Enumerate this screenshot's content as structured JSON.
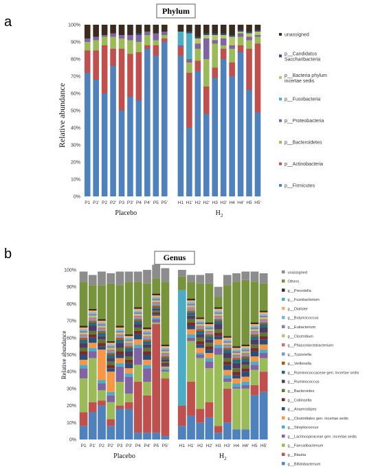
{
  "panel_labels": [
    "a",
    "b"
  ],
  "chart_data": [
    {
      "type": "bar",
      "stacked": true,
      "title": "Phylum",
      "ylabel": "Relative abundance",
      "yticks": [
        "0%",
        "10%",
        "20%",
        "30%",
        "40%",
        "50%",
        "60%",
        "70%",
        "80%",
        "90%",
        "100%"
      ],
      "ylim": [
        0,
        100
      ],
      "categories": [
        "P1",
        "P1'",
        "P2",
        "P2'",
        "P3",
        "P3'",
        "P4",
        "P4'",
        "P5",
        "P5'",
        "H1",
        "H1'",
        "H2",
        "H2'",
        "H3",
        "H3'",
        "H4",
        "H4'",
        "H5",
        "H5'"
      ],
      "groups": [
        {
          "label": "Placebo",
          "start": 0,
          "end": 9
        },
        {
          "label": "H",
          "sub": "2",
          "start": 10,
          "end": 19
        }
      ],
      "legend_position": "right",
      "series": [
        {
          "name": "p__Firmicutes",
          "color": "#4f81bd",
          "values": [
            72,
            68,
            60,
            76,
            50,
            58,
            56,
            86,
            82,
            90,
            82,
            40,
            73,
            48,
            69,
            80,
            70,
            84,
            62,
            49
          ]
        },
        {
          "name": "p__Actinobacteria",
          "color": "#c0504d",
          "values": [
            13,
            17,
            28,
            10,
            36,
            25,
            28,
            2,
            6,
            2,
            5,
            32,
            6,
            16,
            6,
            6,
            8,
            4,
            24,
            40
          ]
        },
        {
          "name": "p__Bacteroidetes",
          "color": "#9bbb59",
          "values": [
            5,
            6,
            5,
            7,
            6,
            8,
            6,
            6,
            3,
            2,
            0,
            6,
            7,
            16,
            14,
            2,
            8,
            5,
            5,
            4
          ]
        },
        {
          "name": "p__Proteobacteria",
          "color": "#8064a2",
          "values": [
            2,
            2,
            1,
            2,
            2,
            3,
            4,
            2,
            4,
            2,
            1,
            2,
            3,
            12,
            2,
            4,
            2,
            2,
            2,
            1
          ]
        },
        {
          "name": "p__Fusobacteria",
          "color": "#4bacc6",
          "values": [
            0,
            0,
            0,
            0,
            0,
            0,
            0,
            0,
            0,
            0,
            8,
            15,
            0,
            0,
            0,
            0,
            0,
            0,
            0,
            0
          ]
        },
        {
          "name": "p__Bacteria phylum incertae sedis",
          "color": "#b7c36a",
          "values": [
            0,
            0,
            0,
            0,
            0,
            0,
            0,
            0,
            0,
            0,
            0,
            0,
            3,
            2,
            3,
            2,
            5,
            1,
            2,
            2
          ]
        },
        {
          "name": "p__Candidatus Saccharibacteria",
          "color": "#2c4d75",
          "values": [
            0,
            0,
            0,
            0,
            0,
            0,
            1,
            0,
            0,
            0,
            0,
            1,
            1,
            1,
            1,
            1,
            1,
            1,
            1,
            1
          ]
        },
        {
          "name": "unassigned",
          "color": "#3b2b1c",
          "values": [
            8,
            7,
            6,
            5,
            6,
            6,
            5,
            4,
            5,
            4,
            4,
            4,
            7,
            5,
            5,
            5,
            6,
            3,
            4,
            3
          ]
        }
      ]
    },
    {
      "type": "bar",
      "stacked": true,
      "title": "Genus",
      "ylabel": "Relative abundance",
      "yticks": [
        "0%",
        "10%",
        "20%",
        "30%",
        "40%",
        "50%",
        "60%",
        "70%",
        "80%",
        "90%",
        "100%"
      ],
      "ylim": [
        0,
        100
      ],
      "categories": [
        "P1",
        "P1'",
        "P2",
        "P2'",
        "P3",
        "P3'",
        "P4",
        "P4'",
        "P5",
        "P5'",
        "H1",
        "H1'",
        "H2",
        "H2'",
        "H3",
        "H3'",
        "H4",
        "H4'",
        "H5",
        "H5'"
      ],
      "groups": [
        {
          "label": "Placebo",
          "start": 0,
          "end": 9
        },
        {
          "label": "H",
          "sub": "2",
          "start": 10,
          "end": 19
        }
      ],
      "legend_position": "right",
      "series": [
        {
          "name": "g__Bifidobacterium",
          "color": "#4f81bd",
          "values": [
            8,
            16,
            20,
            8,
            18,
            18,
            4,
            4,
            4,
            2,
            8,
            14,
            10,
            13,
            4,
            10,
            6,
            6,
            26,
            28
          ]
        },
        {
          "name": "g__Blautia",
          "color": "#c0504d",
          "values": [
            8,
            6,
            3,
            4,
            2,
            4,
            30,
            22,
            64,
            34,
            12,
            20,
            8,
            9,
            4,
            20,
            0,
            0,
            6,
            12
          ]
        },
        {
          "name": "g__Faecalibacterium",
          "color": "#9bbb59",
          "values": [
            20,
            26,
            6,
            10,
            14,
            5,
            10,
            8,
            1,
            4,
            0,
            24,
            30,
            20,
            42,
            4,
            24,
            24,
            9,
            8
          ]
        },
        {
          "name": "g__Lachnospiraceae gen. incertae sedis",
          "color": "#8064a2",
          "values": [
            6,
            4,
            4,
            4,
            9,
            10,
            10,
            8,
            2,
            1,
            0,
            2,
            2,
            4,
            4,
            2,
            1,
            2,
            3,
            3
          ]
        },
        {
          "name": "g__Streptococcus",
          "color": "#4bacc6",
          "values": [
            2,
            2,
            2,
            2,
            2,
            2,
            2,
            2,
            1,
            1,
            0,
            2,
            1,
            2,
            2,
            2,
            2,
            2,
            2,
            2
          ]
        },
        {
          "name": "g__Clostridiales gen. incertae sedis",
          "color": "#f79646",
          "values": [
            3,
            3,
            18,
            12,
            3,
            3,
            3,
            3,
            1,
            1,
            0,
            3,
            3,
            3,
            3,
            3,
            3,
            3,
            3,
            3
          ]
        },
        {
          "name": "g__Anaerostipes",
          "color": "#2c4d75",
          "values": [
            3,
            3,
            2,
            2,
            2,
            3,
            3,
            3,
            1,
            1,
            0,
            2,
            2,
            2,
            2,
            3,
            2,
            3,
            3,
            3
          ]
        },
        {
          "name": "g__Collinsella",
          "color": "#772c2a",
          "values": [
            2,
            2,
            2,
            2,
            2,
            2,
            2,
            2,
            1,
            1,
            0,
            2,
            2,
            2,
            2,
            2,
            2,
            2,
            2,
            2
          ]
        },
        {
          "name": "g__Bacteroides",
          "color": "#5f7530",
          "values": [
            2,
            2,
            2,
            2,
            2,
            2,
            2,
            2,
            1,
            1,
            0,
            2,
            2,
            2,
            2,
            2,
            2,
            2,
            2,
            2
          ]
        },
        {
          "name": "g__Ruminococcus",
          "color": "#4d3b62",
          "values": [
            3,
            3,
            2,
            2,
            3,
            3,
            2,
            2,
            1,
            1,
            0,
            2,
            2,
            2,
            3,
            3,
            3,
            2,
            3,
            3
          ]
        },
        {
          "name": "g__Ruminococcaceae gen. incertae sedis",
          "color": "#276a7c",
          "values": [
            2,
            2,
            2,
            2,
            2,
            2,
            2,
            2,
            1,
            1,
            0,
            2,
            2,
            2,
            2,
            2,
            2,
            2,
            2,
            2
          ]
        },
        {
          "name": "g__Veillonella",
          "color": "#b65708",
          "values": [
            1,
            1,
            1,
            1,
            1,
            1,
            1,
            1,
            1,
            1,
            0,
            1,
            1,
            1,
            1,
            1,
            1,
            1,
            1,
            1
          ]
        },
        {
          "name": "g__Tyzzerella",
          "color": "#729aca",
          "values": [
            1,
            1,
            1,
            1,
            1,
            1,
            1,
            1,
            1,
            1,
            0,
            1,
            1,
            1,
            1,
            1,
            1,
            1,
            1,
            1
          ]
        },
        {
          "name": "g__Phascolarctobacterium",
          "color": "#cd7371",
          "values": [
            1,
            1,
            1,
            1,
            1,
            1,
            1,
            1,
            1,
            1,
            0,
            1,
            1,
            1,
            1,
            1,
            1,
            1,
            1,
            1
          ]
        },
        {
          "name": "g__Clostridium",
          "color": "#afc97a",
          "values": [
            1,
            1,
            1,
            1,
            1,
            1,
            1,
            1,
            1,
            1,
            0,
            1,
            1,
            1,
            1,
            1,
            1,
            1,
            1,
            1
          ]
        },
        {
          "name": "g__Eubacterium",
          "color": "#8d7ba3",
          "values": [
            1,
            1,
            1,
            1,
            1,
            1,
            1,
            1,
            1,
            1,
            0,
            1,
            1,
            1,
            1,
            1,
            1,
            1,
            1,
            1
          ]
        },
        {
          "name": "g__Butyricicoccus",
          "color": "#6fbdd2",
          "values": [
            1,
            1,
            1,
            1,
            1,
            1,
            1,
            1,
            1,
            1,
            0,
            1,
            1,
            1,
            1,
            1,
            1,
            1,
            1,
            1
          ]
        },
        {
          "name": "g__Dialister",
          "color": "#f9ab6b",
          "values": [
            1,
            1,
            1,
            1,
            1,
            1,
            1,
            1,
            1,
            1,
            0,
            1,
            1,
            1,
            1,
            1,
            1,
            1,
            1,
            1
          ]
        },
        {
          "name": "g__Fusobacterium",
          "color": "#4bacc6",
          "values": [
            0,
            0,
            0,
            0,
            0,
            0,
            0,
            0,
            0,
            0,
            68,
            0,
            0,
            0,
            0,
            0,
            0,
            0,
            0,
            0
          ]
        },
        {
          "name": "g__Prevotella",
          "color": "#3b2b1c",
          "values": [
            1,
            1,
            1,
            1,
            1,
            1,
            1,
            1,
            1,
            1,
            0,
            1,
            1,
            1,
            1,
            1,
            1,
            1,
            1,
            1
          ]
        },
        {
          "name": "Others",
          "color": "#77933c",
          "values": [
            26,
            14,
            20,
            34,
            24,
            31,
            15,
            26,
            9,
            37,
            8,
            10,
            20,
            23,
            6,
            30,
            38,
            38,
            24,
            16
          ]
        },
        {
          "name": "unassigned",
          "color": "#8c8c8c",
          "values": [
            6,
            6,
            8,
            6,
            8,
            6,
            6,
            8,
            8,
            8,
            4,
            4,
            5,
            6,
            6,
            6,
            5,
            5,
            6,
            6
          ]
        }
      ]
    }
  ]
}
